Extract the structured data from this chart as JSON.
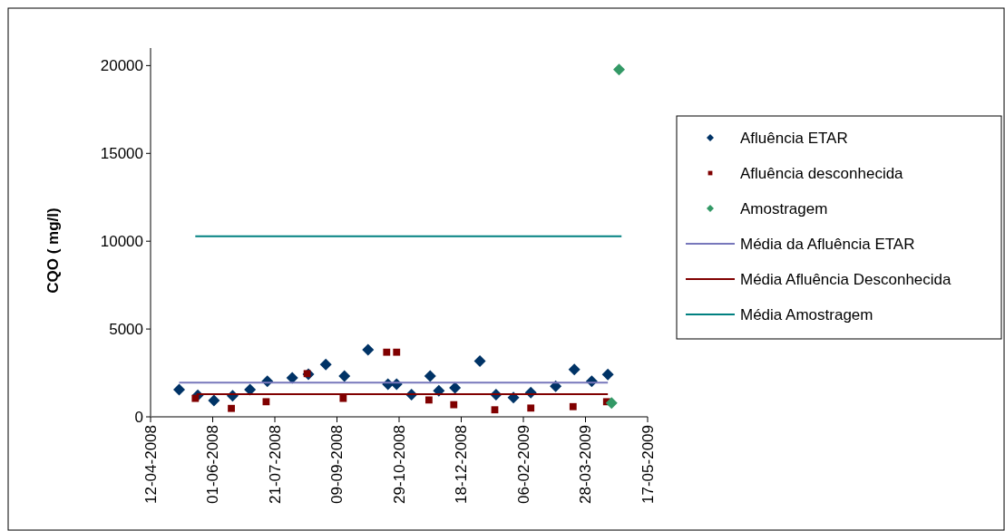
{
  "chart_data": {
    "type": "scatter",
    "ylabel": "CQO ( mg/l)",
    "xlim": [
      "2008-04-12",
      "2009-05-17"
    ],
    "xticks": [
      {
        "value": "2008-04-12",
        "label": "12-04-2008"
      },
      {
        "value": "2008-06-01",
        "label": "01-06-2008"
      },
      {
        "value": "2008-07-21",
        "label": "21-07-2008"
      },
      {
        "value": "2008-09-09",
        "label": "09-09-2008"
      },
      {
        "value": "2008-10-29",
        "label": "29-10-2008"
      },
      {
        "value": "2008-12-18",
        "label": "18-12-2008"
      },
      {
        "value": "2009-02-06",
        "label": "06-02-2009"
      },
      {
        "value": "2009-03-28",
        "label": "28-03-2009"
      },
      {
        "value": "2009-05-17",
        "label": "17-05-2009"
      }
    ],
    "ylim": [
      0,
      21000
    ],
    "yticks": [
      0,
      5000,
      10000,
      15000,
      20000
    ],
    "grid": false,
    "legend": "right",
    "series": [
      {
        "name": "Afluência ETAR",
        "marker": "diamond",
        "color": "#003366",
        "x": [
          "2008-05-05",
          "2008-05-20",
          "2008-06-02",
          "2008-06-17",
          "2008-07-01",
          "2008-07-15",
          "2008-08-04",
          "2008-08-17",
          "2008-08-31",
          "2008-09-15",
          "2008-10-04",
          "2008-10-20",
          "2008-10-27",
          "2008-11-08",
          "2008-11-23",
          "2008-11-30",
          "2008-12-13",
          "2009-01-02",
          "2009-01-15",
          "2009-01-29",
          "2009-02-12",
          "2009-03-04",
          "2009-03-19",
          "2009-04-02",
          "2009-04-15"
        ],
        "values": [
          1550,
          1220,
          930,
          1200,
          1550,
          2030,
          2220,
          2430,
          2980,
          2320,
          3820,
          1860,
          1860,
          1270,
          2320,
          1480,
          1650,
          3170,
          1270,
          1100,
          1380,
          1740,
          2690,
          2030,
          2410
        ]
      },
      {
        "name": "Afluência desconhecida",
        "marker": "square",
        "color": "#800000",
        "x": [
          "2008-05-18",
          "2008-06-16",
          "2008-07-14",
          "2008-08-16",
          "2008-09-14",
          "2008-10-19",
          "2008-10-27",
          "2008-11-22",
          "2008-12-12",
          "2009-01-14",
          "2009-02-12",
          "2009-03-18",
          "2009-04-14"
        ],
        "values": [
          1050,
          480,
          860,
          2460,
          1050,
          3680,
          3680,
          960,
          690,
          400,
          500,
          580,
          860
        ]
      },
      {
        "name": "Amostragem",
        "marker": "diamond",
        "color": "#339966",
        "x": [
          "2009-04-18",
          "2009-04-24"
        ],
        "values": [
          790,
          19780
        ]
      },
      {
        "name": "Média da Afluência ETAR",
        "type": "line",
        "marker": "none",
        "color": "#7777bb",
        "x": [
          "2008-05-05",
          "2009-04-15"
        ],
        "values": [
          1950,
          1950
        ]
      },
      {
        "name": "Média Afluência Desconhecida",
        "type": "line",
        "marker": "none",
        "color": "#800000",
        "x": [
          "2008-05-19",
          "2009-04-15"
        ],
        "values": [
          1290,
          1290
        ]
      },
      {
        "name": "Média Amostragem",
        "type": "line",
        "marker": "none",
        "color": "#008080",
        "x": [
          "2008-05-18",
          "2009-04-26"
        ],
        "values": [
          10280,
          10280
        ]
      }
    ]
  }
}
